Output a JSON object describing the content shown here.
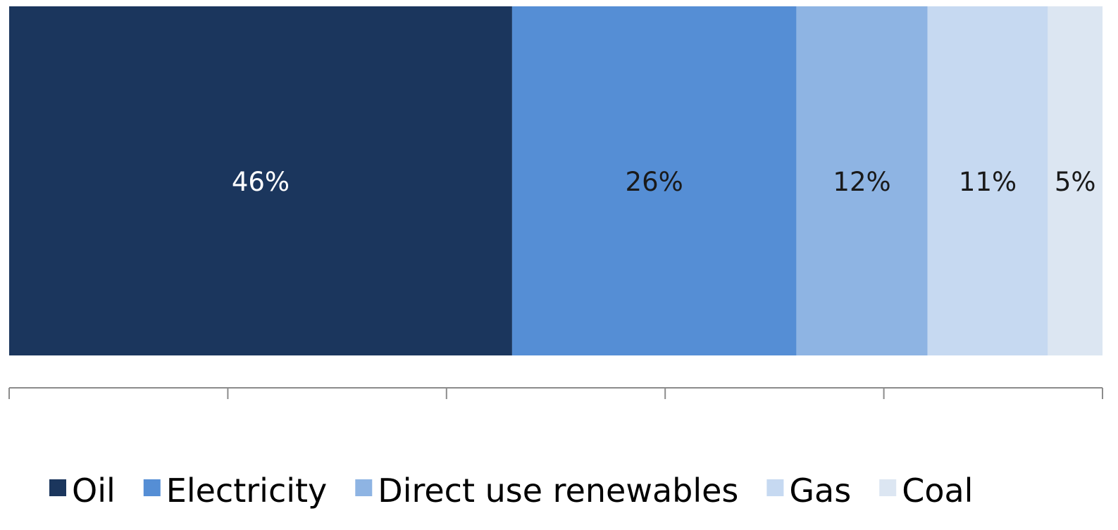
{
  "chart_data": {
    "type": "bar",
    "orientation": "horizontal",
    "stacked": true,
    "value_format": "percent",
    "xlim": [
      0,
      100
    ],
    "grid": false,
    "legend_position": "bottom",
    "title": "",
    "xlabel": "",
    "ylabel": "",
    "series": [
      {
        "name": "Oil",
        "value": 46,
        "label": "46%",
        "color": "#1B365D",
        "label_color": "#FFFFFF"
      },
      {
        "name": "Electricity",
        "value": 26,
        "label": "26%",
        "color": "#558ED5",
        "label_color": "#1A1A1A"
      },
      {
        "name": "Direct use renewables",
        "value": 12,
        "label": "12%",
        "color": "#8EB4E3",
        "label_color": "#1A1A1A"
      },
      {
        "name": "Gas",
        "value": 11,
        "label": "11%",
        "color": "#C6D9F1",
        "label_color": "#1A1A1A"
      },
      {
        "name": "Coal",
        "value": 5,
        "label": "5%",
        "color": "#DCE6F2",
        "label_color": "#1A1A1A"
      }
    ]
  }
}
